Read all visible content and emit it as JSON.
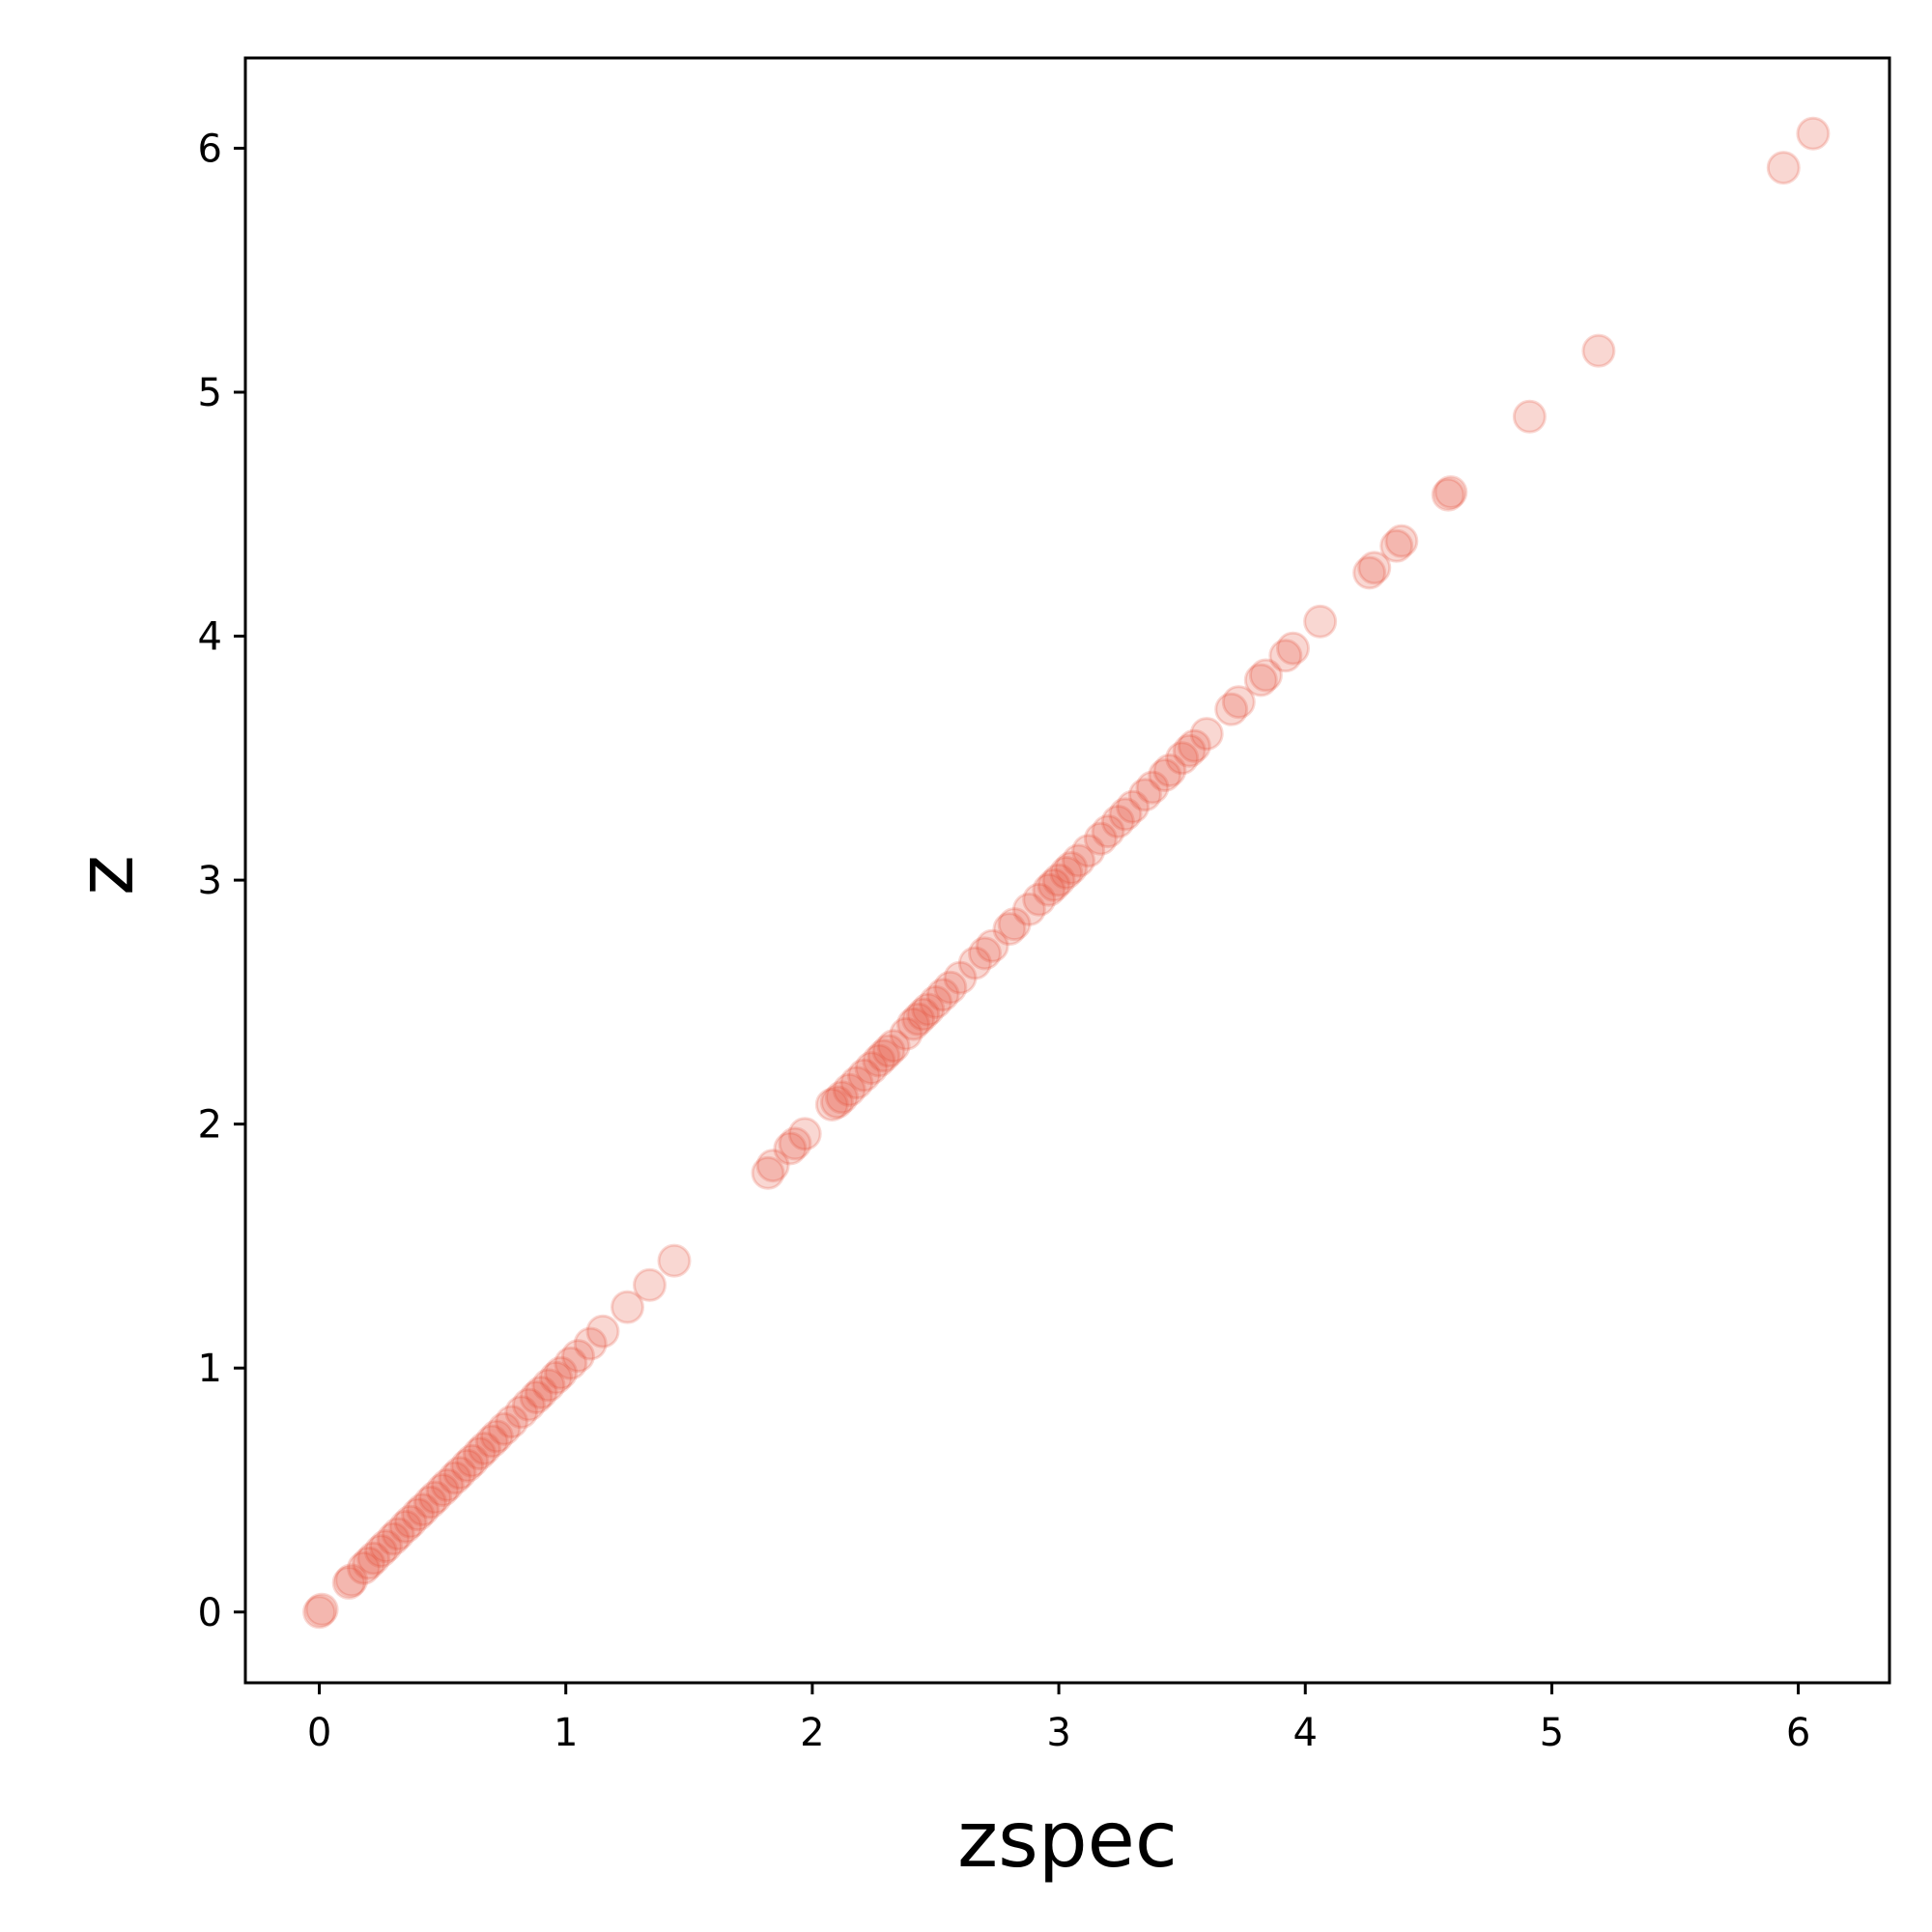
{
  "chart_data": {
    "type": "scatter",
    "xlabel": "zspec",
    "ylabel": "z",
    "xlim": [
      -0.3,
      6.37
    ],
    "ylim": [
      -0.29,
      6.37
    ],
    "xticks": [
      "0",
      "1",
      "2",
      "3",
      "4",
      "5",
      "6"
    ],
    "yticks": [
      "0",
      "1",
      "2",
      "3",
      "4",
      "5",
      "6"
    ],
    "grid": false,
    "colors": {
      "marker": "#e24a33"
    },
    "points": [
      [
        0.0,
        0.0
      ],
      [
        0.01,
        0.01
      ],
      [
        0.12,
        0.12
      ],
      [
        0.13,
        0.13
      ],
      [
        0.18,
        0.18
      ],
      [
        0.2,
        0.2
      ],
      [
        0.22,
        0.22
      ],
      [
        0.25,
        0.25
      ],
      [
        0.27,
        0.27
      ],
      [
        0.3,
        0.3
      ],
      [
        0.32,
        0.32
      ],
      [
        0.35,
        0.35
      ],
      [
        0.37,
        0.37
      ],
      [
        0.4,
        0.4
      ],
      [
        0.42,
        0.42
      ],
      [
        0.45,
        0.45
      ],
      [
        0.47,
        0.47
      ],
      [
        0.5,
        0.5
      ],
      [
        0.52,
        0.52
      ],
      [
        0.55,
        0.55
      ],
      [
        0.57,
        0.57
      ],
      [
        0.6,
        0.6
      ],
      [
        0.62,
        0.62
      ],
      [
        0.65,
        0.65
      ],
      [
        0.67,
        0.67
      ],
      [
        0.7,
        0.7
      ],
      [
        0.72,
        0.72
      ],
      [
        0.75,
        0.75
      ],
      [
        0.78,
        0.78
      ],
      [
        0.82,
        0.82
      ],
      [
        0.85,
        0.85
      ],
      [
        0.88,
        0.88
      ],
      [
        0.9,
        0.9
      ],
      [
        0.93,
        0.93
      ],
      [
        0.96,
        0.96
      ],
      [
        0.98,
        0.98
      ],
      [
        1.02,
        1.02
      ],
      [
        1.05,
        1.05
      ],
      [
        1.1,
        1.1
      ],
      [
        1.15,
        1.15
      ],
      [
        1.25,
        1.25
      ],
      [
        1.34,
        1.34
      ],
      [
        1.44,
        1.44
      ],
      [
        1.82,
        1.8
      ],
      [
        1.84,
        1.83
      ],
      [
        1.91,
        1.9
      ],
      [
        1.93,
        1.92
      ],
      [
        1.97,
        1.96
      ],
      [
        2.08,
        2.08
      ],
      [
        2.1,
        2.09
      ],
      [
        2.12,
        2.11
      ],
      [
        2.15,
        2.14
      ],
      [
        2.18,
        2.17
      ],
      [
        2.21,
        2.2
      ],
      [
        2.24,
        2.23
      ],
      [
        2.27,
        2.26
      ],
      [
        2.29,
        2.28
      ],
      [
        2.31,
        2.3
      ],
      [
        2.33,
        2.32
      ],
      [
        2.38,
        2.37
      ],
      [
        2.41,
        2.41
      ],
      [
        2.43,
        2.43
      ],
      [
        2.45,
        2.45
      ],
      [
        2.47,
        2.47
      ],
      [
        2.5,
        2.5
      ],
      [
        2.53,
        2.53
      ],
      [
        2.56,
        2.56
      ],
      [
        2.6,
        2.6
      ],
      [
        2.66,
        2.66
      ],
      [
        2.7,
        2.7
      ],
      [
        2.73,
        2.73
      ],
      [
        2.8,
        2.8
      ],
      [
        2.82,
        2.82
      ],
      [
        2.88,
        2.88
      ],
      [
        2.92,
        2.92
      ],
      [
        2.96,
        2.96
      ],
      [
        2.98,
        2.98
      ],
      [
        3.0,
        3.0
      ],
      [
        3.03,
        3.03
      ],
      [
        3.05,
        3.05
      ],
      [
        3.08,
        3.08
      ],
      [
        3.12,
        3.12
      ],
      [
        3.17,
        3.17
      ],
      [
        3.2,
        3.2
      ],
      [
        3.24,
        3.24
      ],
      [
        3.27,
        3.27
      ],
      [
        3.3,
        3.3
      ],
      [
        3.35,
        3.35
      ],
      [
        3.38,
        3.38
      ],
      [
        3.43,
        3.43
      ],
      [
        3.45,
        3.45
      ],
      [
        3.5,
        3.5
      ],
      [
        3.53,
        3.53
      ],
      [
        3.55,
        3.55
      ],
      [
        3.6,
        3.6
      ],
      [
        3.7,
        3.7
      ],
      [
        3.73,
        3.73
      ],
      [
        3.82,
        3.82
      ],
      [
        3.84,
        3.84
      ],
      [
        3.92,
        3.92
      ],
      [
        3.95,
        3.95
      ],
      [
        4.06,
        4.06
      ],
      [
        4.26,
        4.26
      ],
      [
        4.28,
        4.28
      ],
      [
        4.37,
        4.37
      ],
      [
        4.39,
        4.39
      ],
      [
        4.58,
        4.58
      ],
      [
        4.59,
        4.59
      ],
      [
        4.91,
        4.9
      ],
      [
        5.19,
        5.17
      ],
      [
        5.94,
        5.92
      ],
      [
        6.06,
        6.06
      ]
    ]
  }
}
